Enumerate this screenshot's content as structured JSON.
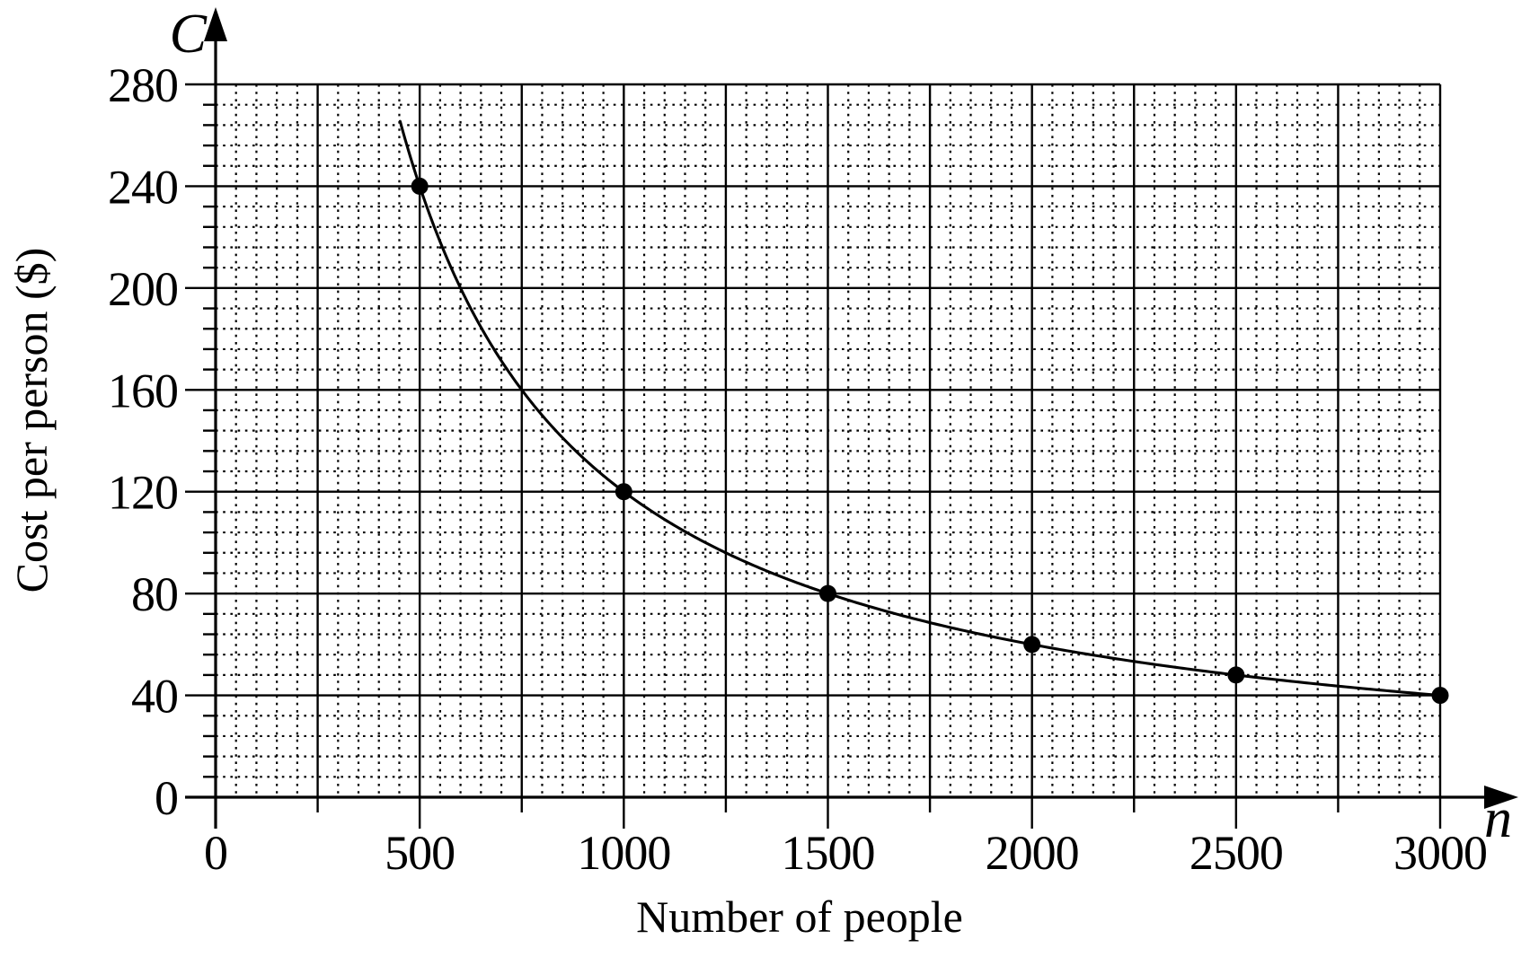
{
  "figure": {
    "background_color": "#ffffff",
    "ink_color": "#000000"
  },
  "chart_data": {
    "type": "line",
    "title": "",
    "xlabel": "Number of people",
    "ylabel": "Cost per person ($)",
    "x_axis_symbol": "n",
    "y_axis_symbol": "C",
    "xlim": [
      0,
      3000
    ],
    "ylim": [
      0,
      280
    ],
    "x_tick_labels": [
      0,
      500,
      1000,
      1500,
      2000,
      2500,
      3000
    ],
    "y_tick_labels": [
      0,
      40,
      80,
      120,
      160,
      200,
      240,
      280
    ],
    "x_major_step": 250,
    "x_minor_step": 50,
    "y_major_step": 40,
    "y_minor_step": 8,
    "grid": {
      "major_style": "solid",
      "minor_style": "dotted",
      "grid_on": true
    },
    "legend": "none",
    "series": [
      {
        "relation": "C = 120000 / n",
        "equation_constant": 120000,
        "draw_domain": [
          452,
          3000
        ],
        "marked_points": [
          {
            "n": 500,
            "C": 240
          },
          {
            "n": 1000,
            "C": 120
          },
          {
            "n": 1500,
            "C": 80
          },
          {
            "n": 2000,
            "C": 60
          },
          {
            "n": 2500,
            "C": 48
          },
          {
            "n": 3000,
            "C": 40
          }
        ]
      }
    ]
  }
}
